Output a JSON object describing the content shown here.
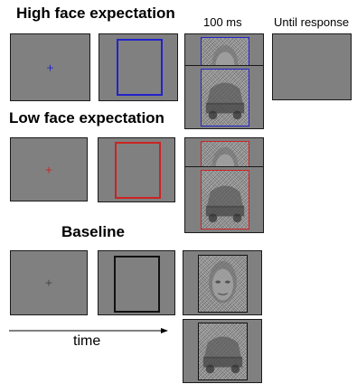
{
  "headings": {
    "high": "High face expectation",
    "low": "Low face expectation",
    "baseline": "Baseline"
  },
  "columns": {
    "stimulus_duration": "100 ms",
    "response": "Until response"
  },
  "fixation_symbol": "+",
  "time_label": "time",
  "colors": {
    "screen": "#808080",
    "high_cue": "#2222cc",
    "low_cue": "#cc2222",
    "baseline_cue": "#111111"
  },
  "stimuli": {
    "face_icon": "face-stimulus-icon",
    "car_icon": "car-stimulus-icon"
  }
}
